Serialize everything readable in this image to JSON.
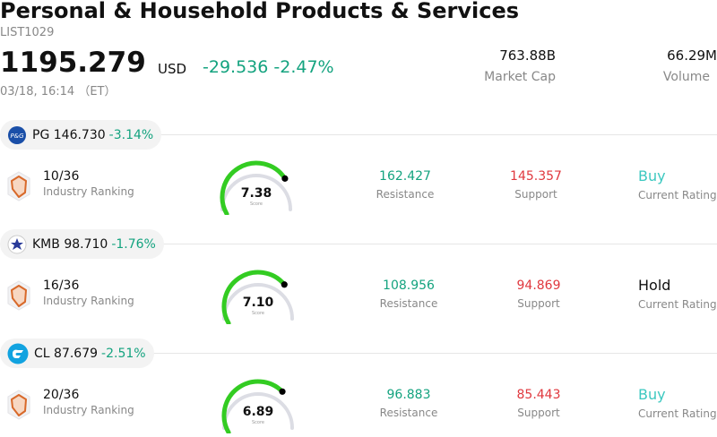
{
  "header": {
    "title": "Personal & Household Products & Services",
    "code": "LIST1029",
    "price": "1195.279",
    "currency": "USD",
    "change": "-29.536",
    "change_pct": "-2.47%",
    "timestamp": "03/18, 16:14 （ET）",
    "market_cap_value": "763.88B",
    "market_cap_label": "Market Cap",
    "volume_value": "66.29M",
    "volume_label": "Volume"
  },
  "colors": {
    "up_green": "#14a37f",
    "down_red": "#e0383e",
    "buy_teal": "#3cc8c0",
    "gauge_green": "#33cc22",
    "gauge_track": "#dcdde4"
  },
  "stocks": [
    {
      "ticker": "PG",
      "price": "146.730",
      "change_pct": "-3.14%",
      "logo_icon": "pg-logo-icon",
      "rank": "10/36",
      "rank_label": "Industry Ranking",
      "score": "7.38",
      "score_label": "Score",
      "score_fraction": 0.738,
      "resistance": "162.427",
      "resistance_label": "Resistance",
      "support": "145.357",
      "support_label": "Support",
      "rating": "Buy",
      "rating_label": "Current Rating"
    },
    {
      "ticker": "KMB",
      "price": "98.710",
      "change_pct": "-1.76%",
      "logo_icon": "kmb-logo-icon",
      "rank": "16/36",
      "rank_label": "Industry Ranking",
      "score": "7.10",
      "score_label": "Score",
      "score_fraction": 0.71,
      "resistance": "108.956",
      "resistance_label": "Resistance",
      "support": "94.869",
      "support_label": "Support",
      "rating": "Hold",
      "rating_label": "Current Rating"
    },
    {
      "ticker": "CL",
      "price": "87.679",
      "change_pct": "-2.51%",
      "logo_icon": "cl-logo-icon",
      "rank": "20/36",
      "rank_label": "Industry Ranking",
      "score": "6.89",
      "score_label": "Score",
      "score_fraction": 0.689,
      "resistance": "96.883",
      "resistance_label": "Resistance",
      "support": "85.443",
      "support_label": "Support",
      "rating": "Buy",
      "rating_label": "Current Rating"
    }
  ]
}
